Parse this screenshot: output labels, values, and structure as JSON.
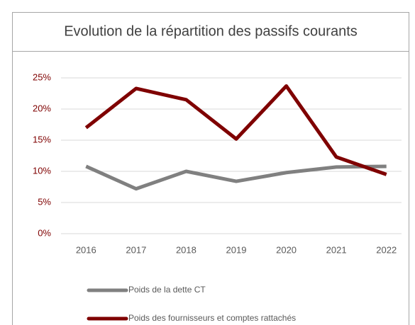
{
  "chart_data": {
    "type": "line",
    "title": "Evolution de la répartition des passifs courants",
    "categories": [
      "2016",
      "2017",
      "2018",
      "2019",
      "2020",
      "2021",
      "2022"
    ],
    "series": [
      {
        "name": "Poids de la dette CT",
        "color": "#808080",
        "values": [
          10.8,
          7.2,
          10.0,
          8.4,
          9.8,
          10.7,
          10.8
        ]
      },
      {
        "name": "Poids des fournisseurs et comptes rattachés",
        "color": "#7f0000",
        "values": [
          17.0,
          23.3,
          21.5,
          15.2,
          23.7,
          12.3,
          9.5
        ]
      }
    ],
    "ylim": [
      0,
      25
    ],
    "yticks": [
      {
        "value": 0,
        "label": "0%"
      },
      {
        "value": 5,
        "label": "5%"
      },
      {
        "value": 10,
        "label": "10%"
      },
      {
        "value": 15,
        "label": "15%"
      },
      {
        "value": 20,
        "label": "20%"
      },
      {
        "value": 25,
        "label": "25%"
      }
    ],
    "grid": true,
    "legend": "bottom"
  }
}
